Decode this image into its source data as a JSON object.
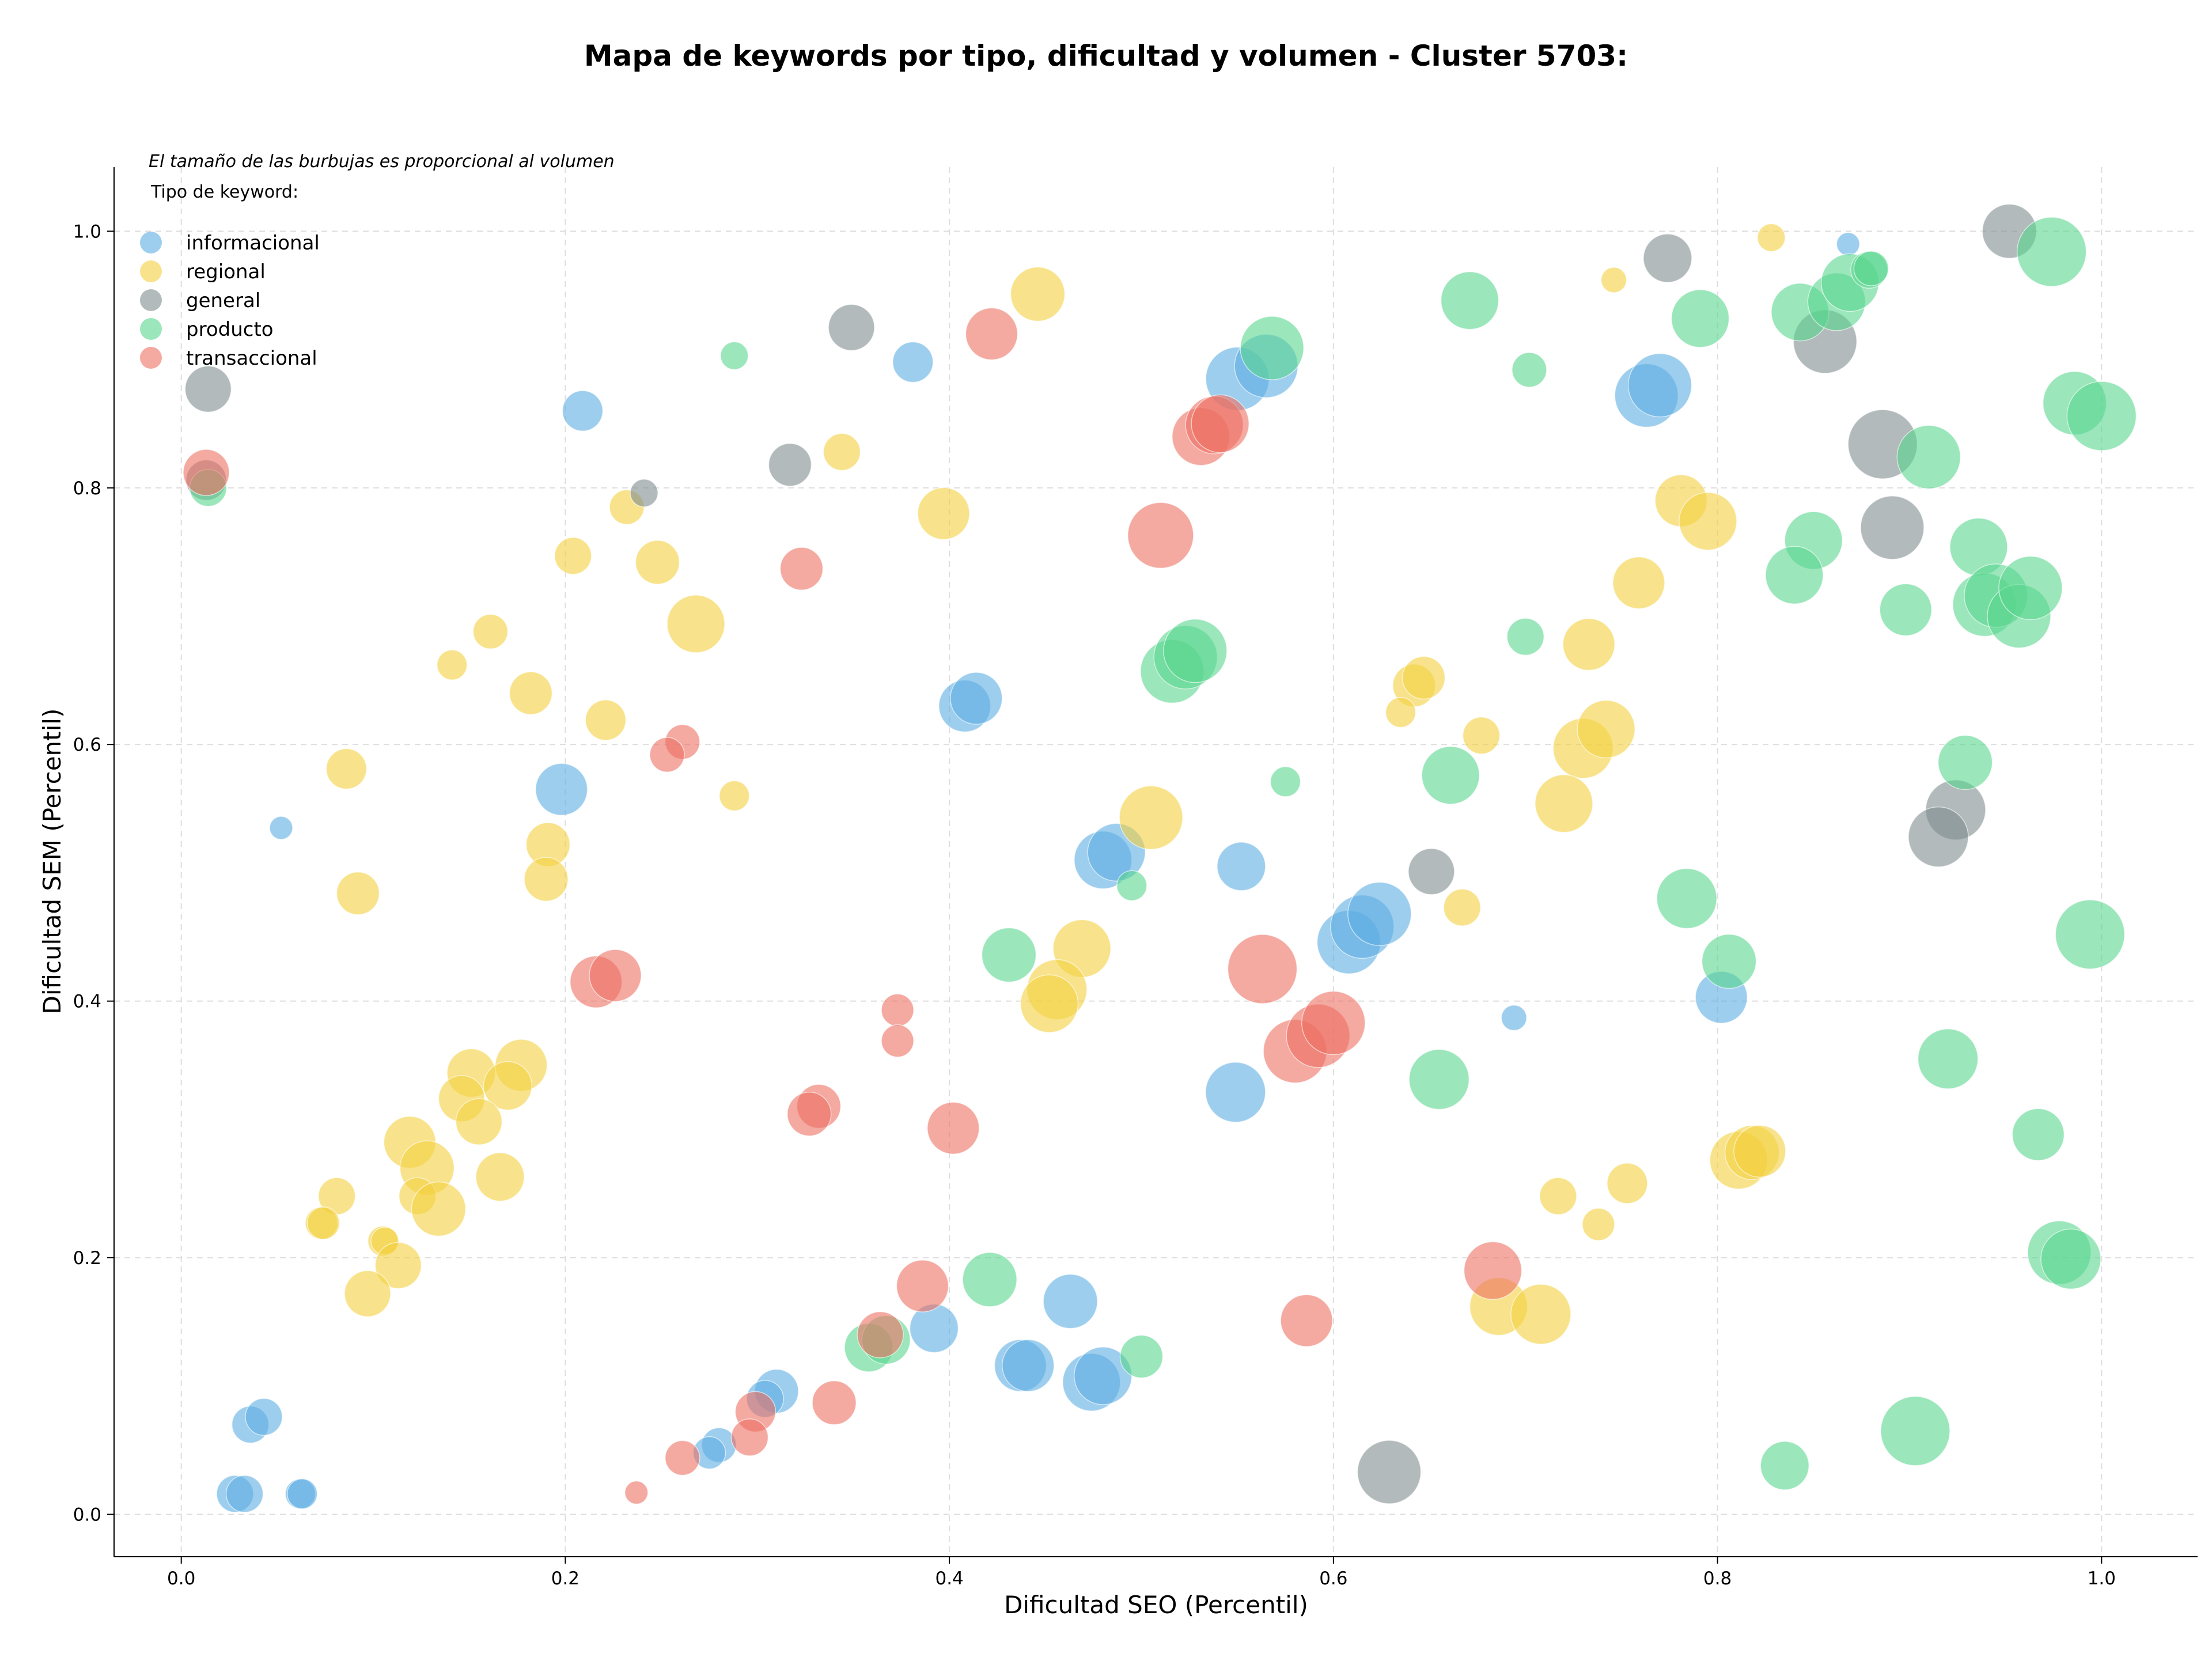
{
  "chart_data": {
    "type": "scatter",
    "title": "Mapa de keywords por tipo, dificultad y volumen - Cluster 5703:",
    "xlabel": "Dificultad SEO (Percentil)",
    "ylabel": "Dificultad SEM (Percentil)",
    "xlim": [
      -0.035,
      1.05
    ],
    "ylim": [
      -0.033,
      1.05
    ],
    "xticks": [
      0.0,
      0.2,
      0.4,
      0.6,
      0.8,
      1.0
    ],
    "yticks": [
      0.0,
      0.2,
      0.4,
      0.6,
      0.8,
      1.0
    ],
    "xtick_labels": [
      "0.0",
      "0.2",
      "0.4",
      "0.6",
      "0.8",
      "1.0"
    ],
    "ytick_labels": [
      "0.0",
      "0.2",
      "0.4",
      "0.6",
      "0.8",
      "1.0"
    ],
    "grid": true,
    "size_note": "El tamaño de las burbujas es proporcional al volumen",
    "legend_title": "Tipo de keyword:",
    "legend_position": "top-left",
    "series": [
      {
        "name": "informacional",
        "color": "#5dade2",
        "points": [
          [
            0.868,
            0.99,
            20
          ],
          [
            0.381,
            0.898,
            35
          ],
          [
            0.209,
            0.86,
            35
          ],
          [
            0.55,
            0.885,
            55
          ],
          [
            0.565,
            0.895,
            55
          ],
          [
            0.763,
            0.872,
            55
          ],
          [
            0.77,
            0.88,
            55
          ],
          [
            0.198,
            0.565,
            45
          ],
          [
            0.052,
            0.535,
            20
          ],
          [
            0.408,
            0.63,
            45
          ],
          [
            0.414,
            0.636,
            45
          ],
          [
            0.48,
            0.51,
            50
          ],
          [
            0.487,
            0.516,
            50
          ],
          [
            0.552,
            0.505,
            42
          ],
          [
            0.608,
            0.446,
            55
          ],
          [
            0.615,
            0.458,
            55
          ],
          [
            0.624,
            0.468,
            55
          ],
          [
            0.694,
            0.387,
            22
          ],
          [
            0.802,
            0.403,
            45
          ],
          [
            0.549,
            0.329,
            52
          ],
          [
            0.437,
            0.116,
            45
          ],
          [
            0.441,
            0.116,
            45
          ],
          [
            0.463,
            0.166,
            47
          ],
          [
            0.474,
            0.103,
            50
          ],
          [
            0.48,
            0.108,
            50
          ],
          [
            0.392,
            0.145,
            42
          ],
          [
            0.31,
            0.096,
            38
          ],
          [
            0.304,
            0.09,
            32
          ],
          [
            0.28,
            0.054,
            30
          ],
          [
            0.275,
            0.048,
            28
          ],
          [
            0.036,
            0.07,
            32
          ],
          [
            0.043,
            0.076,
            32
          ],
          [
            0.028,
            0.016,
            32
          ],
          [
            0.033,
            0.016,
            32
          ],
          [
            0.062,
            0.016,
            26
          ],
          [
            0.063,
            0.016,
            26
          ]
        ]
      },
      {
        "name": "regional",
        "color": "#f4d03f",
        "points": [
          [
            0.446,
            0.951,
            47
          ],
          [
            0.828,
            0.995,
            24
          ],
          [
            0.746,
            0.962,
            22
          ],
          [
            0.344,
            0.828,
            32
          ],
          [
            0.232,
            0.785,
            30
          ],
          [
            0.397,
            0.78,
            45
          ],
          [
            0.204,
            0.747,
            32
          ],
          [
            0.248,
            0.742,
            38
          ],
          [
            0.268,
            0.694,
            50
          ],
          [
            0.161,
            0.688,
            30
          ],
          [
            0.141,
            0.662,
            26
          ],
          [
            0.182,
            0.64,
            37
          ],
          [
            0.221,
            0.619,
            35
          ],
          [
            0.086,
            0.581,
            35
          ],
          [
            0.288,
            0.56,
            26
          ],
          [
            0.191,
            0.522,
            38
          ],
          [
            0.19,
            0.495,
            38
          ],
          [
            0.092,
            0.484,
            37
          ],
          [
            0.505,
            0.543,
            55
          ],
          [
            0.469,
            0.441,
            50
          ],
          [
            0.456,
            0.409,
            52
          ],
          [
            0.452,
            0.398,
            50
          ],
          [
            0.642,
            0.646,
            37
          ],
          [
            0.647,
            0.652,
            37
          ],
          [
            0.635,
            0.625,
            26
          ],
          [
            0.677,
            0.607,
            32
          ],
          [
            0.667,
            0.473,
            32
          ],
          [
            0.759,
            0.726,
            45
          ],
          [
            0.733,
            0.678,
            45
          ],
          [
            0.73,
            0.597,
            52
          ],
          [
            0.742,
            0.612,
            50
          ],
          [
            0.72,
            0.554,
            50
          ],
          [
            0.781,
            0.79,
            45
          ],
          [
            0.795,
            0.774,
            50
          ],
          [
            0.177,
            0.35,
            45
          ],
          [
            0.151,
            0.344,
            42
          ],
          [
            0.17,
            0.334,
            42
          ],
          [
            0.146,
            0.324,
            40
          ],
          [
            0.155,
            0.306,
            40
          ],
          [
            0.119,
            0.29,
            45
          ],
          [
            0.128,
            0.27,
            47
          ],
          [
            0.123,
            0.248,
            32
          ],
          [
            0.134,
            0.238,
            47
          ],
          [
            0.166,
            0.263,
            42
          ],
          [
            0.081,
            0.248,
            32
          ],
          [
            0.073,
            0.227,
            28
          ],
          [
            0.074,
            0.227,
            28
          ],
          [
            0.105,
            0.213,
            26
          ],
          [
            0.106,
            0.213,
            24
          ],
          [
            0.113,
            0.194,
            40
          ],
          [
            0.097,
            0.172,
            40
          ],
          [
            0.811,
            0.276,
            50
          ],
          [
            0.818,
            0.282,
            47
          ],
          [
            0.822,
            0.283,
            45
          ],
          [
            0.753,
            0.258,
            35
          ],
          [
            0.717,
            0.248,
            32
          ],
          [
            0.738,
            0.226,
            28
          ],
          [
            0.686,
            0.162,
            50
          ],
          [
            0.708,
            0.156,
            52
          ]
        ]
      },
      {
        "name": "general",
        "color": "#7f8c8d",
        "points": [
          [
            0.349,
            0.925,
            40
          ],
          [
            0.774,
            0.979,
            42
          ],
          [
            0.952,
            1.0,
            47
          ],
          [
            0.856,
            0.914,
            55
          ],
          [
            0.014,
            0.877,
            40
          ],
          [
            0.317,
            0.818,
            37
          ],
          [
            0.241,
            0.796,
            24
          ],
          [
            0.886,
            0.834,
            60
          ],
          [
            0.891,
            0.769,
            55
          ],
          [
            0.924,
            0.549,
            52
          ],
          [
            0.915,
            0.528,
            52
          ],
          [
            0.651,
            0.501,
            40
          ],
          [
            0.629,
            0.033,
            55
          ],
          [
            0.013,
            0.806,
            35
          ]
        ]
      },
      {
        "name": "producto",
        "color": "#58d68d",
        "points": [
          [
            0.288,
            0.903,
            24
          ],
          [
            0.568,
            0.909,
            55
          ],
          [
            0.671,
            0.946,
            50
          ],
          [
            0.702,
            0.892,
            30
          ],
          [
            0.791,
            0.932,
            50
          ],
          [
            0.843,
            0.937,
            50
          ],
          [
            0.862,
            0.945,
            50
          ],
          [
            0.869,
            0.96,
            50
          ],
          [
            0.879,
            0.97,
            32
          ],
          [
            0.88,
            0.971,
            30
          ],
          [
            0.974,
            0.984,
            60
          ],
          [
            0.986,
            0.866,
            55
          ],
          [
            1.0,
            0.856,
            60
          ],
          [
            0.91,
            0.824,
            55
          ],
          [
            0.936,
            0.754,
            50
          ],
          [
            0.939,
            0.709,
            55
          ],
          [
            0.945,
            0.716,
            55
          ],
          [
            0.957,
            0.7,
            55
          ],
          [
            0.963,
            0.722,
            55
          ],
          [
            0.898,
            0.705,
            45
          ],
          [
            0.85,
            0.759,
            50
          ],
          [
            0.84,
            0.732,
            50
          ],
          [
            0.929,
            0.586,
            47
          ],
          [
            0.7,
            0.684,
            32
          ],
          [
            0.661,
            0.576,
            50
          ],
          [
            0.575,
            0.571,
            26
          ],
          [
            0.516,
            0.657,
            55
          ],
          [
            0.523,
            0.668,
            55
          ],
          [
            0.528,
            0.673,
            55
          ],
          [
            0.495,
            0.49,
            26
          ],
          [
            0.431,
            0.436,
            47
          ],
          [
            0.784,
            0.48,
            52
          ],
          [
            0.806,
            0.431,
            47
          ],
          [
            0.655,
            0.339,
            52
          ],
          [
            0.92,
            0.355,
            52
          ],
          [
            0.994,
            0.452,
            60
          ],
          [
            0.967,
            0.296,
            45
          ],
          [
            0.978,
            0.204,
            55
          ],
          [
            0.984,
            0.199,
            52
          ],
          [
            0.421,
            0.183,
            47
          ],
          [
            0.358,
            0.13,
            42
          ],
          [
            0.367,
            0.136,
            42
          ],
          [
            0.5,
            0.123,
            37
          ],
          [
            0.835,
            0.038,
            42
          ],
          [
            0.903,
            0.065,
            60
          ],
          [
            0.014,
            0.8,
            32
          ]
        ]
      },
      {
        "name": "transaccional",
        "color": "#ec7063",
        "points": [
          [
            0.422,
            0.92,
            45
          ],
          [
            0.531,
            0.84,
            50
          ],
          [
            0.538,
            0.849,
            50
          ],
          [
            0.541,
            0.85,
            50
          ],
          [
            0.51,
            0.763,
            57
          ],
          [
            0.323,
            0.737,
            37
          ],
          [
            0.261,
            0.602,
            30
          ],
          [
            0.253,
            0.592,
            30
          ],
          [
            0.216,
            0.415,
            45
          ],
          [
            0.226,
            0.42,
            45
          ],
          [
            0.373,
            0.393,
            28
          ],
          [
            0.373,
            0.369,
            28
          ],
          [
            0.563,
            0.425,
            60
          ],
          [
            0.58,
            0.361,
            55
          ],
          [
            0.592,
            0.373,
            55
          ],
          [
            0.6,
            0.383,
            55
          ],
          [
            0.332,
            0.318,
            38
          ],
          [
            0.327,
            0.312,
            38
          ],
          [
            0.402,
            0.301,
            45
          ],
          [
            0.386,
            0.178,
            45
          ],
          [
            0.364,
            0.14,
            40
          ],
          [
            0.34,
            0.087,
            38
          ],
          [
            0.299,
            0.08,
            35
          ],
          [
            0.296,
            0.06,
            32
          ],
          [
            0.261,
            0.044,
            30
          ],
          [
            0.237,
            0.017,
            20
          ],
          [
            0.683,
            0.19,
            50
          ],
          [
            0.586,
            0.151,
            45
          ],
          [
            0.013,
            0.812,
            40
          ]
        ]
      }
    ]
  }
}
